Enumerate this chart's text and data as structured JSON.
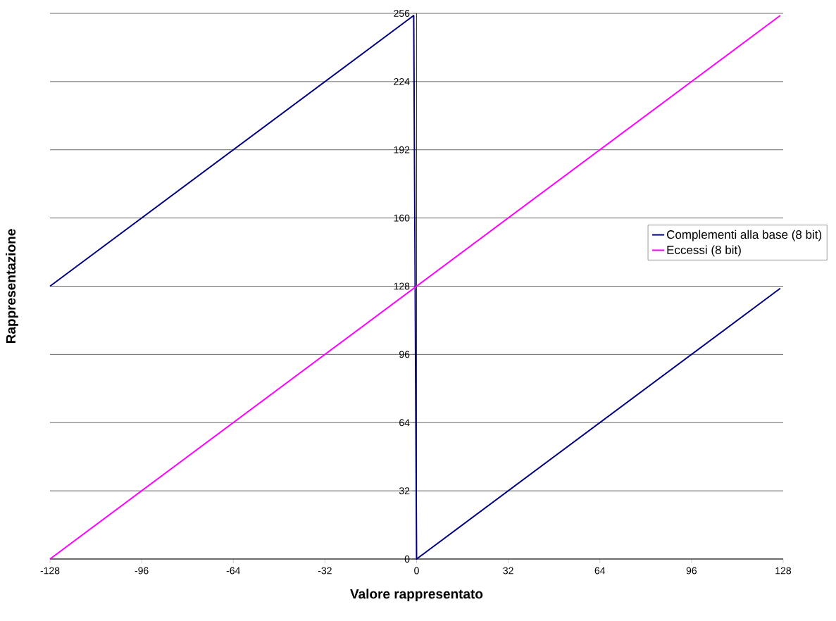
{
  "chart_data": {
    "type": "line",
    "xlabel": "Valore rappresentato",
    "ylabel": "Rappresentazione",
    "series": [
      {
        "name": "Complementi alla base (8 bit)",
        "color": "#000080",
        "x": [
          -128,
          -1,
          0,
          127
        ],
        "values": [
          128,
          255,
          0,
          127
        ]
      },
      {
        "name": "Eccessi (8 bit)",
        "color": "#ff00ff",
        "x": [
          -128,
          127
        ],
        "values": [
          0,
          255
        ]
      }
    ],
    "xlim": [
      -128,
      128
    ],
    "ylim": [
      0,
      256
    ],
    "xticks": [
      -128,
      -96,
      -64,
      -32,
      0,
      32,
      64,
      96,
      128
    ],
    "yticks": [
      0,
      32,
      64,
      96,
      128,
      160,
      192,
      224,
      256
    ],
    "grid": "y",
    "legend": "right"
  }
}
